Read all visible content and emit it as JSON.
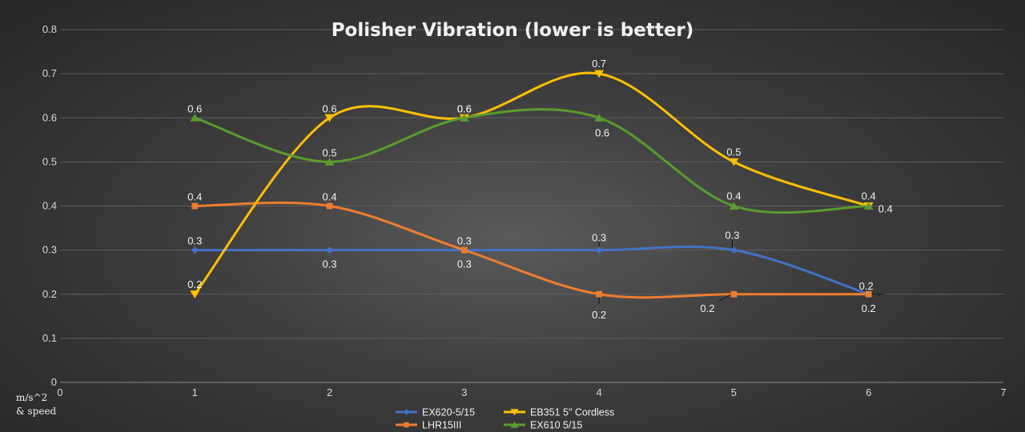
{
  "chart_data": {
    "type": "line",
    "title": "Polisher Vibration (lower is better)",
    "xlabel": "m/s^2\n& speed",
    "ylabel": "",
    "xlim": [
      0,
      7
    ],
    "ylim": [
      0,
      0.8
    ],
    "x_ticks": [
      "0",
      "1",
      "2",
      "3",
      "4",
      "5",
      "6",
      "7"
    ],
    "y_ticks": [
      "0",
      "0.1",
      "0.2",
      "0.3",
      "0.4",
      "0.5",
      "0.6",
      "0.7",
      "0.8"
    ],
    "grid": true,
    "legend_position": "bottom",
    "smoothed": true,
    "series": [
      {
        "name": "EX620-5/15",
        "color": "#4472c4",
        "marker": "diamond",
        "x": [
          1,
          2,
          3,
          4,
          5,
          6
        ],
        "values": [
          0.3,
          0.3,
          0.3,
          0.3,
          0.3,
          0.2
        ],
        "labels": [
          "0.3",
          "0.3",
          "0.3",
          "0.3",
          "0.3",
          "0.2"
        ]
      },
      {
        "name": "LHR15III",
        "color": "#ed7d31",
        "marker": "square",
        "x": [
          1,
          2,
          3,
          4,
          5,
          6
        ],
        "values": [
          0.4,
          0.4,
          0.3,
          0.2,
          0.2,
          0.2
        ],
        "labels": [
          "0.4",
          "0.4",
          "0.3",
          "0.2",
          "0.2",
          "0.2"
        ]
      },
      {
        "name": "EB351 5\" Cordless",
        "color": "#ffc000",
        "marker": "triangle-down",
        "x": [
          1,
          2,
          3,
          4,
          5,
          6
        ],
        "values": [
          0.2,
          0.6,
          0.6,
          0.7,
          0.5,
          0.4
        ],
        "labels": [
          "0.2",
          "0.6",
          "0.6",
          "0.7",
          "0.5",
          "0.4"
        ]
      },
      {
        "name": "EX610 5/15",
        "color": "#5b9b2f",
        "marker": "triangle-up",
        "x": [
          1,
          2,
          3,
          4,
          5,
          6
        ],
        "values": [
          0.6,
          0.5,
          0.6,
          0.6,
          0.4,
          0.4
        ],
        "labels": [
          "0.6",
          "0.5",
          "0.6",
          "0.6",
          "0.4",
          "0.4"
        ]
      }
    ]
  }
}
